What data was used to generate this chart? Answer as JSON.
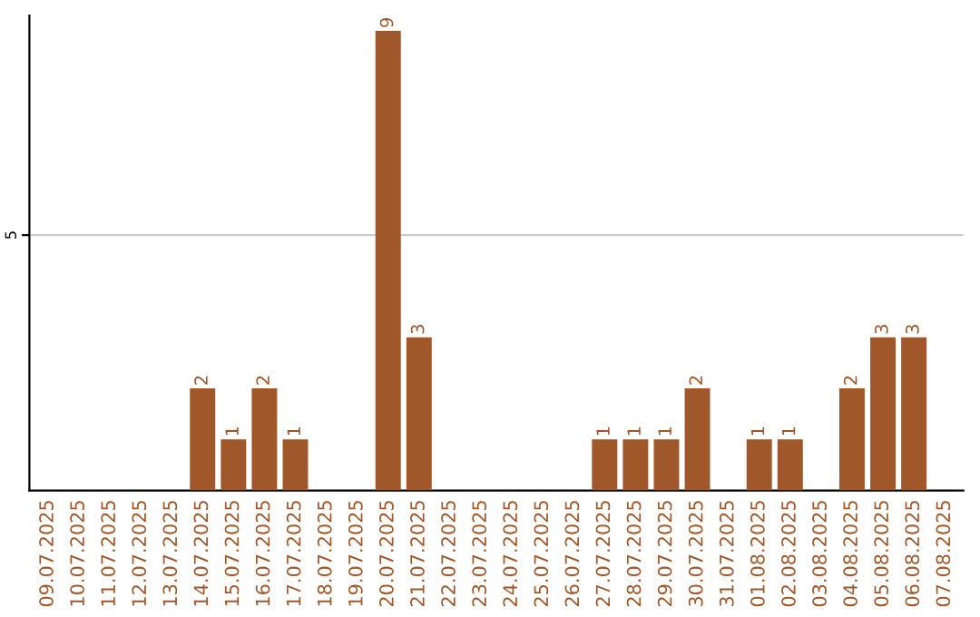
{
  "chart_data": {
    "type": "bar",
    "categories": [
      "09.07.2025",
      "10.07.2025",
      "11.07.2025",
      "12.07.2025",
      "13.07.2025",
      "14.07.2025",
      "15.07.2025",
      "16.07.2025",
      "17.07.2025",
      "18.07.2025",
      "19.07.2025",
      "20.07.2025",
      "21.07.2025",
      "22.07.2025",
      "23.07.2025",
      "24.07.2025",
      "25.07.2025",
      "26.07.2025",
      "27.07.2025",
      "28.07.2025",
      "29.07.2025",
      "30.07.2025",
      "31.07.2025",
      "01.08.2025",
      "02.08.2025",
      "03.08.2025",
      "04.08.2025",
      "05.08.2025",
      "06.08.2025",
      "07.08.2025"
    ],
    "values": [
      0,
      0,
      0,
      0,
      0,
      2,
      1,
      2,
      1,
      0,
      0,
      9,
      3,
      0,
      0,
      0,
      0,
      0,
      1,
      1,
      1,
      2,
      0,
      1,
      1,
      0,
      2,
      3,
      3,
      0
    ],
    "value_labels": [
      null,
      null,
      null,
      null,
      null,
      "2",
      "1",
      "2",
      "1",
      null,
      null,
      "9",
      "3",
      null,
      null,
      null,
      null,
      null,
      "1",
      "1",
      "1",
      "2",
      null,
      "1",
      "1",
      null,
      "2",
      "3",
      "3",
      null
    ],
    "color": "#a0582a",
    "ylim": [
      0,
      9.3
    ],
    "yticks": [
      5
    ],
    "grid": "y"
  }
}
